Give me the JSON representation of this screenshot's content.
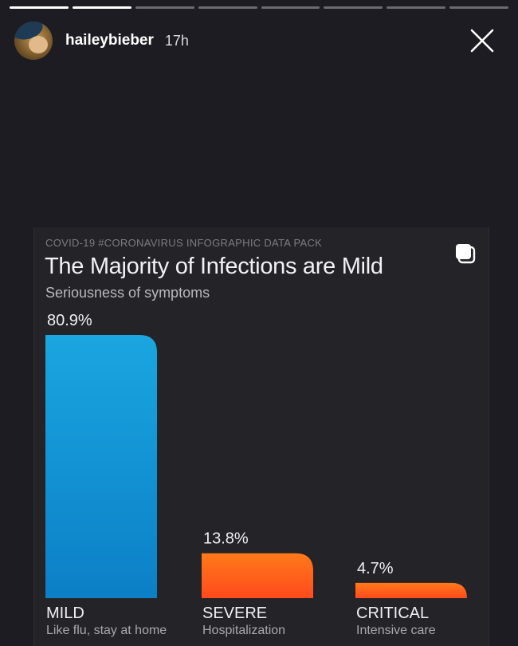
{
  "story": {
    "segments_total": 8,
    "active_segment": 2,
    "active_progress": 1.0,
    "username": "haileybieber",
    "time": "17h",
    "close_icon": "close-icon"
  },
  "card": {
    "kicker": "COVID-19 #CORONAVIRUS INFOGRAPHIC DATA PACK",
    "title": "The Majority of Infections are Mild",
    "subtitle": "Seriousness of symptoms",
    "copy_icon": "copy-icon"
  },
  "chart_data": {
    "type": "bar",
    "title": "The Majority of Infections are Mild",
    "subtitle": "Seriousness of symptoms",
    "categories": [
      "MILD",
      "SEVERE",
      "CRITICAL"
    ],
    "category_notes": [
      "Like flu, stay at home",
      "Hospitalization",
      "Intensive care"
    ],
    "values": [
      80.9,
      13.8,
      4.7
    ],
    "value_labels": [
      "80.9%",
      "13.8%",
      "4.7%"
    ],
    "ylim": [
      0,
      80.9
    ],
    "grid": false,
    "colors": {
      "mild_top": "#1aa6e0",
      "mild_bottom": "#0c7fc6",
      "hot_top": "#ff7a1a",
      "hot_bottom": "#ff4a1c"
    }
  }
}
